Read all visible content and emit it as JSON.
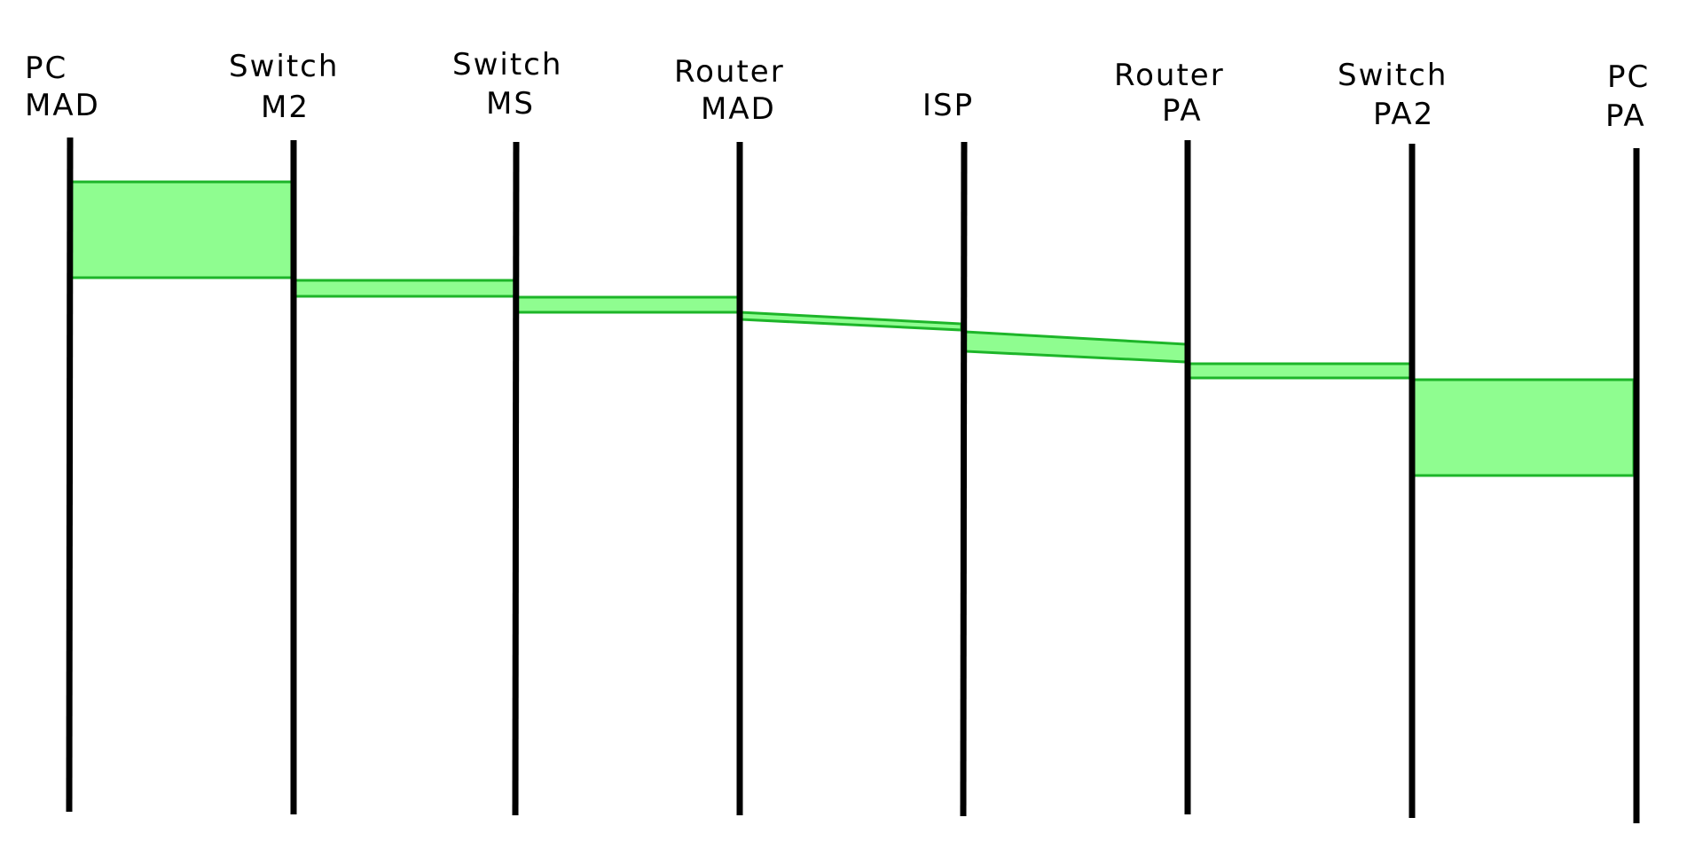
{
  "diagram": {
    "colors": {
      "line": "#000000",
      "segment_fill": "#8ffd90",
      "segment_stroke": "#1db529"
    },
    "nodes": [
      {
        "line1": "PC",
        "line2": "MAD"
      },
      {
        "line1": "Switch",
        "line2": "M2"
      },
      {
        "line1": "Switch",
        "line2": "MS"
      },
      {
        "line1": "Router",
        "line2": "MAD"
      },
      {
        "line1": "ISP",
        "line2": ""
      },
      {
        "line1": "Router",
        "line2": "PA"
      },
      {
        "line1": "Switch",
        "line2": "PA2"
      },
      {
        "line1": "PC",
        "line2": "PA"
      }
    ]
  }
}
